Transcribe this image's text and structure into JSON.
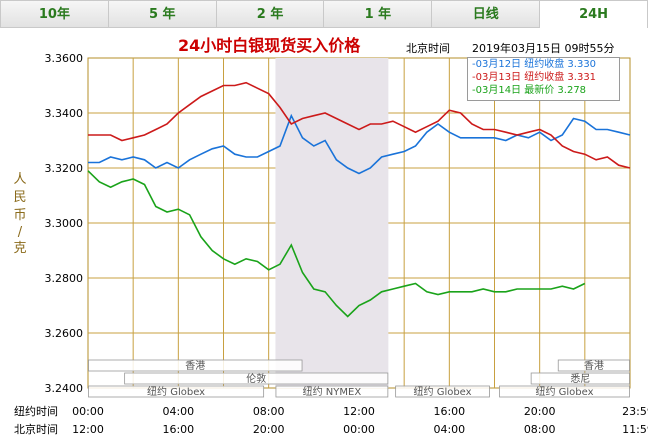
{
  "tabs": [
    {
      "label": "10年",
      "active": false
    },
    {
      "label": "5 年",
      "active": false
    },
    {
      "label": "2 年",
      "active": false
    },
    {
      "label": "1 年",
      "active": false
    },
    {
      "label": "日线",
      "active": false
    },
    {
      "label": "24H",
      "active": true
    }
  ],
  "chart_data": {
    "type": "line",
    "title": "24小时白银现货买入价格",
    "beijing_time_label": "北京时间",
    "timestamp": "2019年03月15日 09时55分",
    "ylabel": "人民币/克",
    "ylim": [
      3.24,
      3.36
    ],
    "y_ticks": [
      "3.3600",
      "3.3400",
      "3.3200",
      "3.3000",
      "3.2800",
      "3.2600",
      "3.2400"
    ],
    "x_ny_label": "纽约时间",
    "x_bj_label": "北京时间",
    "x_ny_ticks": [
      "00:00",
      "04:00",
      "08:00",
      "12:00",
      "16:00",
      "20:00",
      "23:59"
    ],
    "x_bj_ticks": [
      "12:00",
      "16:00",
      "20:00",
      "00:00",
      "04:00",
      "08:00",
      "11:59"
    ],
    "highlight_hours": [
      8.3,
      13.3
    ],
    "series": [
      {
        "name": "03月12日",
        "legend": "-03月12日  纽约收盘 3.330",
        "color": "#1a73d9",
        "x": [
          0,
          0.5,
          1,
          1.5,
          2,
          2.5,
          3,
          3.5,
          4,
          4.5,
          5,
          5.5,
          6,
          6.5,
          7,
          7.5,
          8,
          8.5,
          9,
          9.5,
          10,
          10.5,
          11,
          11.5,
          12,
          12.5,
          13,
          13.5,
          14,
          14.5,
          15,
          15.5,
          16,
          16.5,
          17,
          17.5,
          18,
          18.5,
          19,
          19.5,
          20,
          20.5,
          21,
          21.5,
          22,
          22.5,
          23,
          23.5,
          24
        ],
        "values": [
          3.322,
          3.322,
          3.324,
          3.323,
          3.324,
          3.323,
          3.32,
          3.322,
          3.32,
          3.323,
          3.325,
          3.327,
          3.328,
          3.325,
          3.324,
          3.324,
          3.326,
          3.328,
          3.339,
          3.331,
          3.328,
          3.33,
          3.323,
          3.32,
          3.318,
          3.32,
          3.324,
          3.325,
          3.326,
          3.328,
          3.333,
          3.336,
          3.333,
          3.331,
          3.331,
          3.331,
          3.331,
          3.33,
          3.332,
          3.331,
          3.333,
          3.33,
          3.332,
          3.338,
          3.337,
          3.334,
          3.334,
          3.333,
          3.332
        ]
      },
      {
        "name": "03月13日",
        "legend": "-03月13日  纽约收盘 3.331",
        "color": "#cc1a1a",
        "x": [
          0,
          0.5,
          1,
          1.5,
          2,
          2.5,
          3,
          3.5,
          4,
          4.5,
          5,
          5.5,
          6,
          6.5,
          7,
          7.5,
          8,
          8.5,
          9,
          9.5,
          10,
          10.5,
          11,
          11.5,
          12,
          12.5,
          13,
          13.5,
          14,
          14.5,
          15,
          15.5,
          16,
          16.5,
          17,
          17.5,
          18,
          18.5,
          19,
          19.5,
          20,
          20.5,
          21,
          21.5,
          22,
          22.5,
          23,
          23.5,
          24
        ],
        "values": [
          3.332,
          3.332,
          3.332,
          3.33,
          3.331,
          3.332,
          3.334,
          3.336,
          3.34,
          3.343,
          3.346,
          3.348,
          3.35,
          3.35,
          3.351,
          3.349,
          3.347,
          3.342,
          3.336,
          3.338,
          3.339,
          3.34,
          3.338,
          3.336,
          3.334,
          3.336,
          3.336,
          3.337,
          3.335,
          3.333,
          3.335,
          3.337,
          3.341,
          3.34,
          3.336,
          3.334,
          3.334,
          3.333,
          3.332,
          3.333,
          3.334,
          3.332,
          3.328,
          3.326,
          3.325,
          3.323,
          3.324,
          3.321,
          3.32
        ]
      },
      {
        "name": "03月14日",
        "legend": "-03月14日  最新价 3.278",
        "color": "#1aa31a",
        "x": [
          0,
          0.5,
          1,
          1.5,
          2,
          2.5,
          3,
          3.5,
          4,
          4.5,
          5,
          5.5,
          6,
          6.5,
          7,
          7.5,
          8,
          8.5,
          9,
          9.5,
          10,
          10.5,
          11,
          11.5,
          12,
          12.5,
          13,
          13.5,
          14,
          14.5,
          15,
          15.5,
          16,
          16.5,
          17,
          17.5,
          18,
          18.5,
          19,
          19.5,
          20,
          20.5,
          21,
          21.5,
          22
        ],
        "values": [
          3.319,
          3.315,
          3.313,
          3.315,
          3.316,
          3.314,
          3.306,
          3.304,
          3.305,
          3.303,
          3.295,
          3.29,
          3.287,
          3.285,
          3.287,
          3.286,
          3.283,
          3.285,
          3.292,
          3.282,
          3.276,
          3.275,
          3.27,
          3.266,
          3.27,
          3.272,
          3.275,
          3.276,
          3.277,
          3.278,
          3.275,
          3.274,
          3.275,
          3.275,
          3.275,
          3.276,
          3.275,
          3.275,
          3.276,
          3.276,
          3.276,
          3.276,
          3.277,
          3.276,
          3.278
        ]
      }
    ],
    "market_bars": [
      {
        "label": "香港",
        "row": 0,
        "start": 0,
        "end": 9.5
      },
      {
        "label": "香港",
        "row": 0,
        "start": 20.8,
        "end": 24
      },
      {
        "label": "伦敦",
        "row": 1,
        "start": 1.6,
        "end": 13.3
      },
      {
        "label": "悉尼",
        "row": 1,
        "start": 19.6,
        "end": 24
      },
      {
        "label": "纽约 Globex",
        "row": 2,
        "start": 0,
        "end": 7.8
      },
      {
        "label": "纽约 NYMEX",
        "row": 2,
        "start": 8.3,
        "end": 13.3
      },
      {
        "label": "纽约 Globex",
        "row": 2,
        "start": 13.6,
        "end": 17.8
      },
      {
        "label": "纽约 Globex",
        "row": 2,
        "start": 18.2,
        "end": 24
      }
    ]
  }
}
